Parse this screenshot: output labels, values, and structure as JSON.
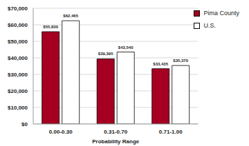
{
  "chart_data": {
    "type": "bar",
    "x_label": "Probability Range",
    "categories": [
      "0.00-0.30",
      "0.31-0.70",
      "0.71-1.00"
    ],
    "series": [
      {
        "name": "Pima County",
        "color": "#a50021",
        "values": [
          55830,
          39395,
          33435
        ],
        "value_labels": [
          "$55,830",
          "$39,395",
          "$33,435"
        ]
      },
      {
        "name": "U.S.",
        "color": "#ffffff",
        "values": [
          62465,
          43540,
          35370
        ],
        "value_labels": [
          "$62,465",
          "$43,540",
          "$35,370"
        ]
      }
    ],
    "ylim": [
      0,
      70000
    ],
    "yticks": [
      {
        "value": 0,
        "label": "$0"
      },
      {
        "value": 10000,
        "label": "$10,000"
      },
      {
        "value": 20000,
        "label": "$20,000"
      },
      {
        "value": 30000,
        "label": "$30,000"
      },
      {
        "value": 40000,
        "label": "$40,000"
      },
      {
        "value": 50000,
        "label": "$50,000"
      },
      {
        "value": 60000,
        "label": "$60,000"
      },
      {
        "value": 70000,
        "label": "$70,000"
      }
    ],
    "grid": true,
    "data_labels": true,
    "legend": "upper right"
  }
}
